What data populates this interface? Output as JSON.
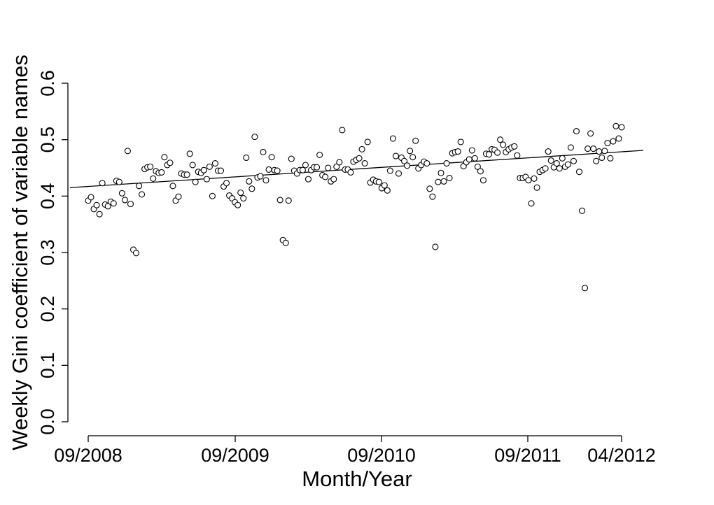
{
  "chart_data": {
    "type": "scatter",
    "title": "",
    "xlabel": "Month/Year",
    "ylabel": "Weekly Gini coefficient of variable names",
    "x_tick_labels": [
      "09/2008",
      "09/2009",
      "09/2010",
      "09/2011",
      "04/2012"
    ],
    "y_tick_labels": [
      "0.0",
      "0.1",
      "0.2",
      "0.3",
      "0.4",
      "0.5",
      "0.6"
    ],
    "x_range_weeks": [
      0,
      192
    ],
    "ylim": [
      0,
      0.6
    ],
    "grid": false,
    "legend": "none",
    "trend_line": {
      "y_start": 0.415,
      "y_end": 0.481
    },
    "y": [
      0.392,
      0.398,
      0.377,
      0.384,
      0.368,
      0.423,
      0.385,
      0.382,
      0.39,
      0.387,
      0.427,
      0.425,
      0.405,
      0.393,
      0.48,
      0.386,
      0.305,
      0.299,
      0.418,
      0.403,
      0.448,
      0.451,
      0.452,
      0.431,
      0.444,
      0.441,
      0.442,
      0.469,
      0.455,
      0.459,
      0.418,
      0.392,
      0.399,
      0.44,
      0.438,
      0.438,
      0.475,
      0.455,
      0.425,
      0.443,
      0.441,
      0.446,
      0.43,
      0.452,
      0.4,
      0.458,
      0.445,
      0.445,
      0.417,
      0.423,
      0.401,
      0.396,
      0.389,
      0.384,
      0.406,
      0.396,
      0.468,
      0.426,
      0.413,
      0.505,
      0.433,
      0.435,
      0.478,
      0.428,
      0.447,
      0.469,
      0.446,
      0.445,
      0.393,
      0.322,
      0.317,
      0.392,
      0.466,
      0.445,
      0.44,
      0.446,
      0.446,
      0.455,
      0.43,
      0.446,
      0.451,
      0.451,
      0.473,
      0.437,
      0.434,
      0.45,
      0.426,
      0.43,
      0.452,
      0.46,
      0.517,
      0.447,
      0.447,
      0.442,
      0.461,
      0.464,
      0.467,
      0.483,
      0.458,
      0.496,
      0.424,
      0.429,
      0.426,
      0.425,
      0.414,
      0.419,
      0.41,
      0.445,
      0.502,
      0.471,
      0.44,
      0.468,
      0.462,
      0.454,
      0.48,
      0.469,
      0.498,
      0.449,
      0.455,
      0.461,
      0.458,
      0.413,
      0.399,
      0.31,
      0.425,
      0.441,
      0.426,
      0.458,
      0.432,
      0.476,
      0.478,
      0.479,
      0.496,
      0.453,
      0.46,
      0.465,
      0.481,
      0.467,
      0.452,
      0.444,
      0.428,
      0.475,
      0.474,
      0.483,
      0.482,
      0.477,
      0.5,
      0.491,
      0.478,
      0.483,
      0.486,
      0.488,
      0.472,
      0.432,
      0.432,
      0.434,
      0.428,
      0.387,
      0.431,
      0.415,
      0.443,
      0.446,
      0.449,
      0.479,
      0.463,
      0.451,
      0.458,
      0.449,
      0.467,
      0.452,
      0.456,
      0.486,
      0.462,
      0.515,
      0.443,
      0.374,
      0.237,
      0.484,
      0.511,
      0.484,
      0.462,
      0.479,
      0.468,
      0.48,
      0.494,
      0.467,
      0.497,
      0.524,
      0.502,
      0.522
    ]
  }
}
